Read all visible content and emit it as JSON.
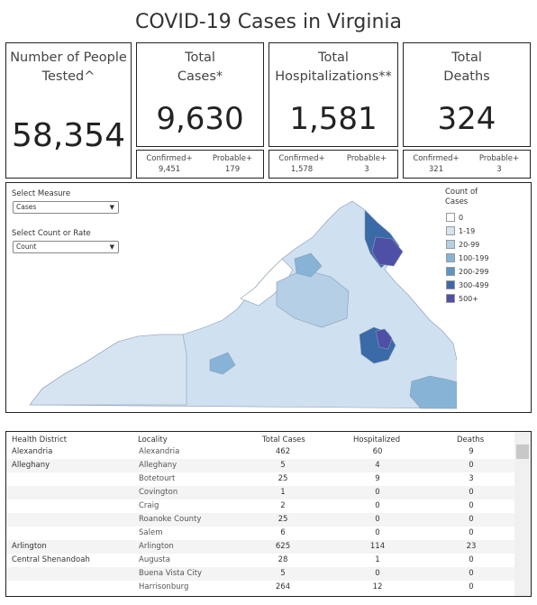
{
  "title": "COVID-19 Cases in Virginia",
  "cards": {
    "tested": {
      "label1": "Number of People",
      "label2": "Tested^",
      "value": "58,354"
    },
    "cases": {
      "label1": "Total",
      "label2": "Cases*",
      "value": "9,630",
      "confirmed_label": "Confirmed+",
      "confirmed": "9,451",
      "probable_label": "Probable+",
      "probable": "179"
    },
    "hosp": {
      "label1": "Total",
      "label2": "Hospitalizations**",
      "value": "1,581",
      "confirmed_label": "Confirmed+",
      "confirmed": "1,578",
      "probable_label": "Probable+",
      "probable": "3"
    },
    "deaths": {
      "label1": "Total",
      "label2": "Deaths",
      "value": "324",
      "confirmed_label": "Confirmed+",
      "confirmed": "321",
      "probable_label": "Probable+",
      "probable": "3"
    }
  },
  "controls": {
    "measure_label": "Select Measure",
    "measure_value": "Cases",
    "countrate_label": "Select Count or Rate",
    "countrate_value": "Count"
  },
  "legend": {
    "title1": "Count of",
    "title2": "Cases",
    "items": [
      {
        "label": "0",
        "color": "#ffffff"
      },
      {
        "label": "1-19",
        "color": "#d6e4f2"
      },
      {
        "label": "20-99",
        "color": "#b4cfe6"
      },
      {
        "label": "100-199",
        "color": "#86b3d6"
      },
      {
        "label": "200-299",
        "color": "#5c94c6"
      },
      {
        "label": "300-499",
        "color": "#3a6aa8"
      },
      {
        "label": "500+",
        "color": "#4e4fa6"
      }
    ]
  },
  "table": {
    "headers": [
      "Health District",
      "Locality",
      "Total Cases",
      "Hospitalized",
      "Deaths"
    ],
    "rows": [
      {
        "district": "Alexandria",
        "locality": "Alexandria",
        "cases": "462",
        "hosp": "60",
        "deaths": "9"
      },
      {
        "district": "Alleghany",
        "locality": "Alleghany",
        "cases": "5",
        "hosp": "4",
        "deaths": "0"
      },
      {
        "district": "",
        "locality": "Botetourt",
        "cases": "25",
        "hosp": "9",
        "deaths": "3"
      },
      {
        "district": "",
        "locality": "Covington",
        "cases": "1",
        "hosp": "0",
        "deaths": "0"
      },
      {
        "district": "",
        "locality": "Craig",
        "cases": "2",
        "hosp": "0",
        "deaths": "0"
      },
      {
        "district": "",
        "locality": "Roanoke County",
        "cases": "25",
        "hosp": "0",
        "deaths": "0"
      },
      {
        "district": "",
        "locality": "Salem",
        "cases": "6",
        "hosp": "0",
        "deaths": "0"
      },
      {
        "district": "Arlington",
        "locality": "Arlington",
        "cases": "625",
        "hosp": "114",
        "deaths": "23"
      },
      {
        "district": "Central Shenandoah",
        "locality": "Augusta",
        "cases": "28",
        "hosp": "1",
        "deaths": "0"
      },
      {
        "district": "",
        "locality": "Buena Vista City",
        "cases": "5",
        "hosp": "0",
        "deaths": "0"
      },
      {
        "district": "",
        "locality": "Harrisonburg",
        "cases": "264",
        "hosp": "12",
        "deaths": "0"
      }
    ]
  }
}
